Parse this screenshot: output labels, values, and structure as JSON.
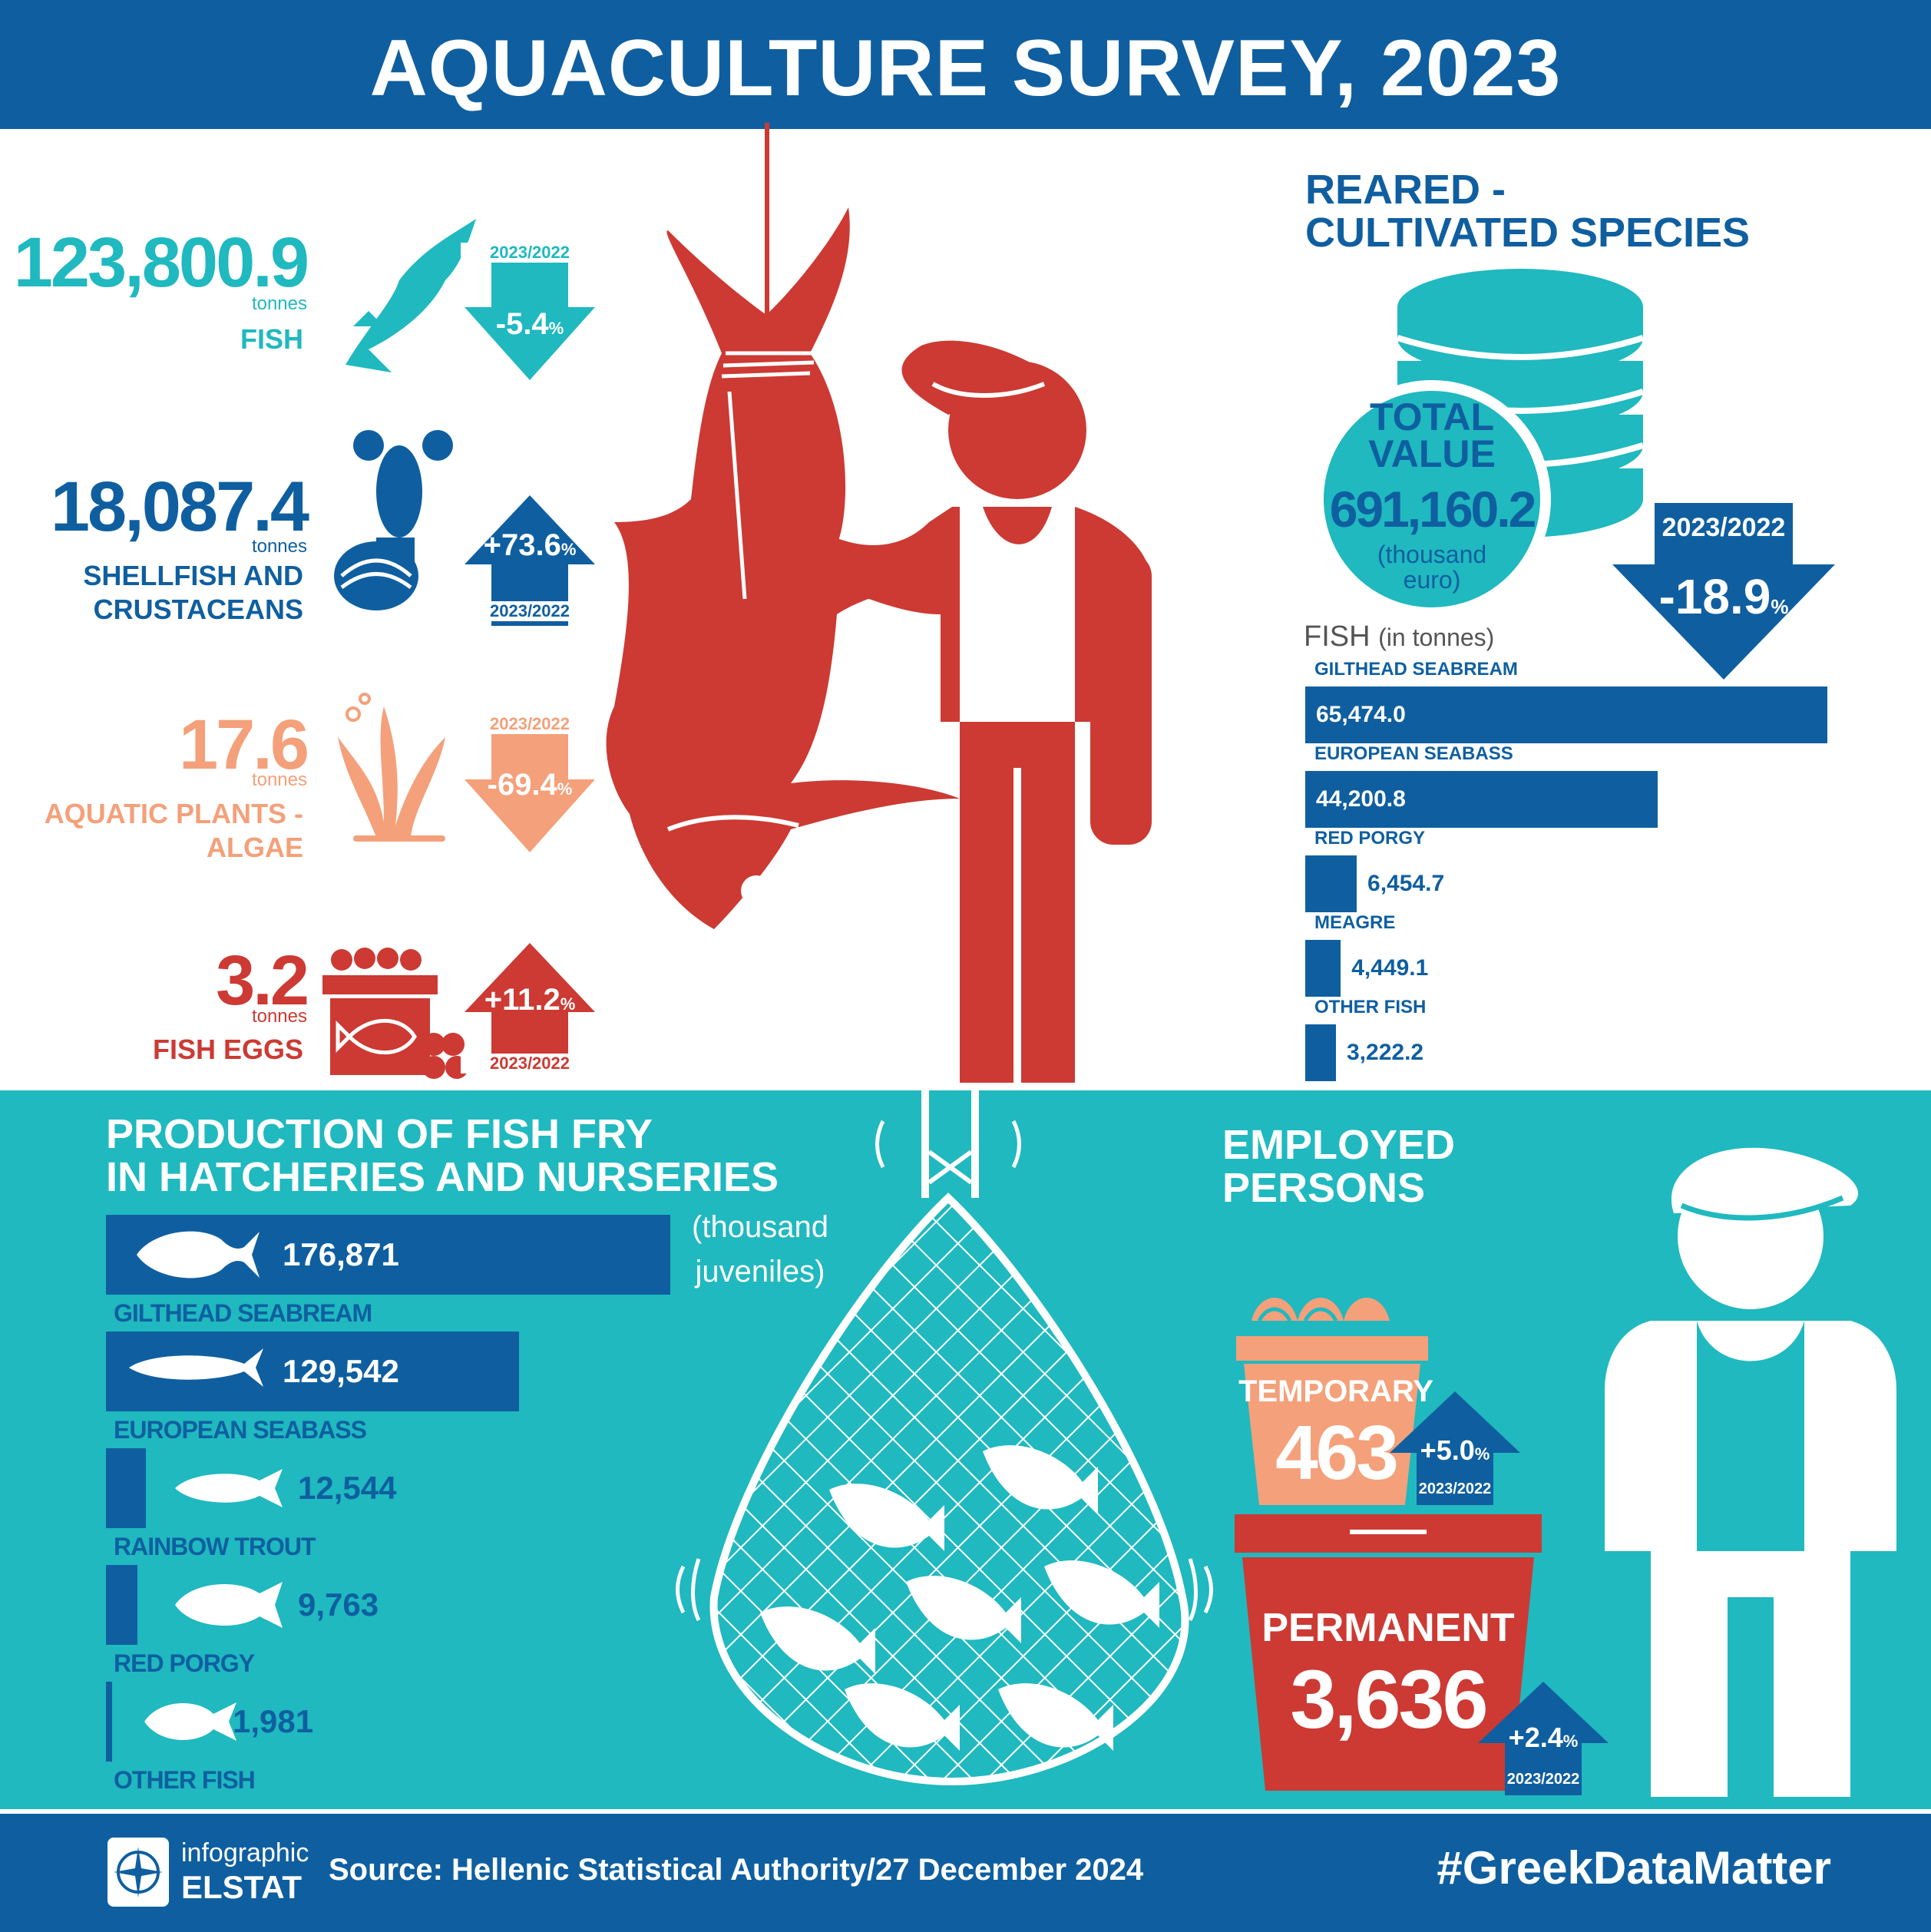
{
  "title": "AQUACULTURE SURVEY, 2023",
  "stats": [
    {
      "value": "123,800.9",
      "unit": "tonnes",
      "label": "FISH",
      "change": "-5.4",
      "pct_sign": "%",
      "year": "2023/2022",
      "color": "#1fb9bf",
      "direction": "down",
      "icon": "fish-icon"
    },
    {
      "value": "18,087.4",
      "unit": "tonnes",
      "label": "SHELLFISH AND CRUSTACEANS",
      "change": "+73.6",
      "pct_sign": "%",
      "year": "2023/2022",
      "color": "#0f5fa0",
      "direction": "up",
      "icon": "lobster-icon"
    },
    {
      "value": "17.6",
      "unit": "tonnes",
      "label": "AQUATIC PLANTS - ALGAE",
      "change": "-69.4",
      "pct_sign": "%",
      "year": "2023/2022",
      "color": "#f4a07a",
      "direction": "down",
      "icon": "algae-icon"
    },
    {
      "value": "3.2",
      "unit": "tonnes",
      "label": "FISH EGGS",
      "change": "+11.2",
      "pct_sign": "%",
      "year": "2023/2022",
      "color": "#cc3a33",
      "direction": "up",
      "icon": "fish-eggs-icon"
    }
  ],
  "reared": {
    "title_line1": "REARED -",
    "title_line2": "CULTIVATED SPECIES",
    "total_label1": "TOTAL",
    "total_label2": "VALUE",
    "total_value": "691,160.2",
    "total_unit1": "(thousand",
    "total_unit2": "euro)",
    "change_year": "2023/2022",
    "change": "-18.9",
    "pct_sign": "%",
    "fish_title": "FISH",
    "fish_unit": "(in tonnes)"
  },
  "chart_data": [
    {
      "type": "bar",
      "title": "FISH (in tonnes)",
      "categories": [
        "GILTHEAD SEABREAM",
        "EUROPEAN SEABASS",
        "RED PORGY",
        "MEAGRE",
        "OTHER FISH"
      ],
      "values": [
        65474.0,
        44200.8,
        6454.7,
        4449.1,
        3222.2
      ],
      "labels": [
        "65,474.0",
        "44,200.8",
        "6,454.7",
        "4,449.1",
        "3,222.2"
      ]
    },
    {
      "type": "bar",
      "title": "PRODUCTION OF FISH FRY IN HATCHERIES AND NURSERIES",
      "unit": "(thousand juveniles)",
      "categories": [
        "GILTHEAD SEABREAM",
        "EUROPEAN SEABASS",
        "RAINBOW TROUT",
        "RED PORGY",
        "OTHER FISH"
      ],
      "values": [
        176871,
        129542,
        12544,
        9763,
        1981
      ],
      "labels": [
        "176,871",
        "129,542",
        "12,544",
        "9,763",
        "1,981"
      ]
    }
  ],
  "fry": {
    "title_line1": "PRODUCTION OF FISH FRY",
    "title_line2": "IN HATCHERIES AND NURSERIES",
    "unit_line1": "(thousand",
    "unit_line2": "juveniles)"
  },
  "employed": {
    "title_line1": "EMPLOYED",
    "title_line2": "PERSONS",
    "temporary_label": "TEMPORARY",
    "temporary_value": "463",
    "temporary_change": "+5.0",
    "permanent_label": "PERMANENT",
    "permanent_value": "3,636",
    "permanent_change": "+2.4",
    "pct_sign": "%",
    "year": "2023/2022"
  },
  "footer": {
    "logo_line1": "infographic",
    "logo_line2": "ELSTAT",
    "source": "Source: Hellenic Statistical Authority/27 December 2024",
    "hashtag": "#GreekDataMatter"
  },
  "colors": {
    "blue": "#0f5fa0",
    "teal": "#1fb9bf",
    "red": "#cc3a33",
    "salmon": "#f4a07a"
  }
}
